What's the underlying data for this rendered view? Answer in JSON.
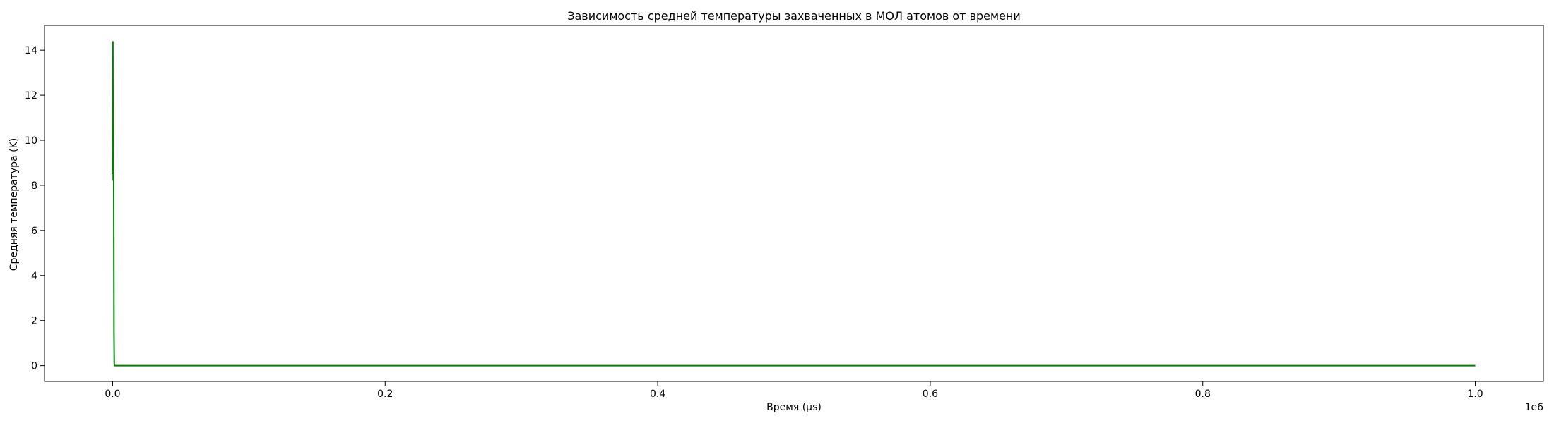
{
  "chart_data": {
    "type": "line",
    "title": "Зависимость средней температуры захваченных в МОЛ атомов от времени",
    "xlabel": "Время (μs)",
    "ylabel": "Средняя температура (K)",
    "x_offset_label": "1e6",
    "xlim": [
      -50000,
      1050000
    ],
    "ylim": [
      -0.7,
      15.1
    ],
    "x_scale_factor": 1000000,
    "xticks": [
      0,
      200000,
      400000,
      600000,
      800000,
      1000000
    ],
    "xtick_labels": [
      "0.0",
      "0.2",
      "0.4",
      "0.6",
      "0.8",
      "1.0"
    ],
    "yticks": [
      0,
      2,
      4,
      6,
      8,
      10,
      12,
      14
    ],
    "ytick_labels": [
      "0",
      "2",
      "4",
      "6",
      "8",
      "10",
      "12",
      "14"
    ],
    "grid": false,
    "series": [
      {
        "color": "#008000",
        "x": [
          0,
          200,
          400,
          600,
          800,
          1000,
          1200,
          1400,
          2000,
          5000,
          20000,
          100000,
          400000,
          700000,
          1000000
        ],
        "y": [
          8.5,
          14.4,
          8.2,
          8.6,
          8.3,
          1.5,
          0.05,
          0.0,
          0.0,
          0.0,
          0.0,
          0.0,
          0.0,
          0.0,
          0.0
        ]
      }
    ]
  }
}
